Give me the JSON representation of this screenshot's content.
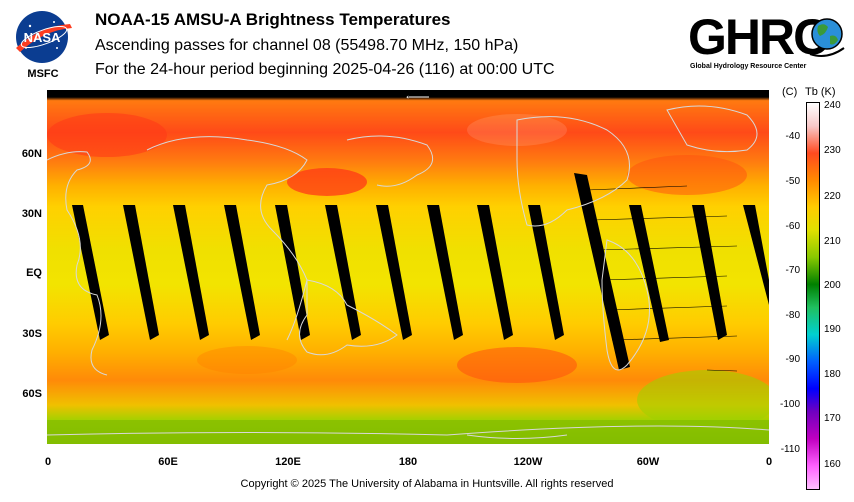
{
  "header": {
    "title": "NOAA-15 AMSU-A Brightness Temperatures",
    "subtitle": "Ascending passes for channel 08 (55498.70 MHz, 150 hPa)",
    "period": "For the 24-hour period beginning 2025-04-26 (116) at 00:00 UTC"
  },
  "logos": {
    "nasa": "NASA",
    "nasa_org": "MSFC",
    "ghrc": "GHRC",
    "ghrc_full": "Global Hydrology Resource Center"
  },
  "map": {
    "lat_labels": [
      "60N",
      "30N",
      "EQ",
      "30S",
      "60S"
    ],
    "lon_labels": [
      "0",
      "60E",
      "120E",
      "180",
      "120W",
      "60W",
      "0"
    ],
    "arrow": "←"
  },
  "colorbar": {
    "celsius_header": "(C)",
    "kelvin_header": "Tb  (K)",
    "celsius": [
      "-40",
      "-50",
      "-60",
      "-70",
      "-80",
      "-90",
      "-100",
      "-110"
    ],
    "kelvin": [
      "240",
      "230",
      "220",
      "210",
      "200",
      "190",
      "180",
      "170",
      "160"
    ]
  },
  "footer": "Copyright © 2025 The University of Alabama in Huntsville.  All rights reserved"
}
